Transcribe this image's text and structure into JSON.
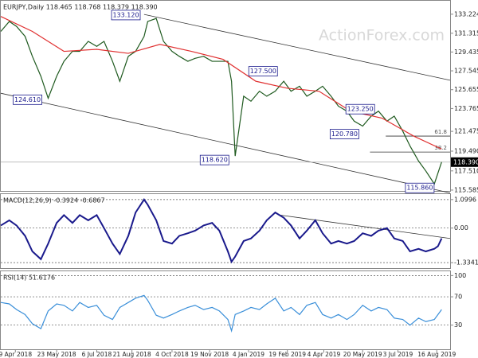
{
  "watermark": "ActionForex.com",
  "chart_data": [
    {
      "type": "line",
      "title": "EURJPY,Daily  118.465 118.768 118.379 118.390",
      "xlim": [
        0,
        370
      ],
      "ylim": [
        115.5,
        134.57
      ],
      "yticks": [
        {
          "value": 133.224,
          "label": "133.224"
        },
        {
          "value": 131.315,
          "label": "131.315"
        },
        {
          "value": 129.435,
          "label": "129.435"
        },
        {
          "value": 127.545,
          "label": "127.545"
        },
        {
          "value": 125.655,
          "label": "125.655"
        },
        {
          "value": 123.765,
          "label": "123.765"
        },
        {
          "value": 121.475,
          "label": "121.475"
        },
        {
          "value": 119.49,
          "label": "119.490"
        },
        {
          "value": 117.51,
          "label": "117.510"
        },
        {
          "value": 115.585,
          "label": "115.585"
        }
      ],
      "grid": "none",
      "x": [
        0,
        7,
        13,
        20,
        26,
        33,
        39,
        46,
        52,
        59,
        65,
        72,
        79,
        85,
        92,
        98,
        105,
        111,
        118,
        121,
        128,
        134,
        141,
        147,
        154,
        160,
        167,
        174,
        180,
        187,
        190,
        193,
        200,
        206,
        213,
        219,
        226,
        233,
        239,
        246,
        252,
        259,
        265,
        272,
        278,
        285,
        291,
        298,
        305,
        311,
        318,
        324,
        331,
        337,
        344,
        350,
        357,
        360,
        363
      ],
      "series": [
        {
          "color": "#1f5a1f",
          "values": [
            131.5,
            132.5,
            132,
            131,
            129,
            127,
            124.8,
            127,
            128.5,
            129.5,
            129.5,
            130.5,
            130,
            130.5,
            128.5,
            126.5,
            129,
            129.5,
            131,
            132.5,
            132.8,
            130.5,
            129.5,
            129,
            128.5,
            128.8,
            129,
            128.5,
            128.5,
            128.5,
            126.5,
            119,
            125,
            124.5,
            125.5,
            125,
            125.5,
            126.5,
            125.5,
            126,
            125,
            125.5,
            126,
            125,
            124,
            123.5,
            122.5,
            122,
            123,
            123.5,
            122.5,
            123,
            121.5,
            120,
            118.5,
            117.5,
            116.2,
            117.3,
            118.4
          ]
        },
        {
          "color": "#e03030",
          "x": [
            0,
            26,
            52,
            79,
            105,
            131,
            157,
            183,
            210,
            236,
            262,
            288,
            314,
            340,
            363
          ],
          "values": [
            133,
            131.5,
            129.5,
            129.7,
            129.3,
            130.2,
            129.5,
            128.7,
            126.5,
            125.8,
            125.5,
            123.5,
            122.8,
            121,
            119.7
          ]
        }
      ],
      "channel": [
        [
          [
            118,
            133.2
          ],
          [
            370,
            126.6
          ]
        ],
        [
          [
            0,
            125.3
          ],
          [
            370,
            115.3
          ]
        ]
      ],
      "fib_levels": [
        {
          "label": "61.8",
          "value": 121.0,
          "from": 317
        },
        {
          "label": "38.2",
          "value": 119.4,
          "from": 304
        }
      ],
      "last_price": {
        "value": 118.39,
        "label": "118.390"
      },
      "annotations": [
        {
          "text": "133.120",
          "x": 103,
          "y": 133.14
        },
        {
          "text": "124.610",
          "x": 22,
          "y": 124.65
        },
        {
          "text": "127.500",
          "x": 216,
          "y": 127.5
        },
        {
          "text": "118.620",
          "x": 176,
          "y": 118.6
        },
        {
          "text": "123.250",
          "x": 296,
          "y": 123.7
        },
        {
          "text": "120.780",
          "x": 283,
          "y": 121.2
        },
        {
          "text": "115.860",
          "x": 345,
          "y": 115.8
        }
      ]
    },
    {
      "type": "line",
      "title": "MACD(12,26,9) -0.3924 -0.6867",
      "xlim": [
        0,
        370
      ],
      "ylim": [
        -1.544,
        1.31
      ],
      "yticks": [
        {
          "value": 1.0996,
          "label": "1.0996"
        },
        {
          "value": 0,
          "label": "0.00"
        },
        {
          "value": -1.3341,
          "label": "-1.3341"
        }
      ],
      "grid": "dashed",
      "x": [
        0,
        7,
        13,
        20,
        26,
        33,
        39,
        46,
        52,
        59,
        65,
        72,
        79,
        85,
        92,
        98,
        105,
        111,
        118,
        121,
        128,
        134,
        141,
        147,
        154,
        160,
        167,
        174,
        180,
        187,
        190,
        193,
        200,
        206,
        213,
        219,
        226,
        233,
        239,
        246,
        252,
        259,
        265,
        272,
        278,
        285,
        291,
        298,
        305,
        311,
        318,
        324,
        331,
        337,
        344,
        350,
        357,
        360,
        363
      ],
      "series": [
        {
          "color": "#1a1a8c",
          "values": [
            0.1,
            0.3,
            0.1,
            -0.3,
            -0.9,
            -1.2,
            -0.6,
            0.2,
            0.5,
            0.2,
            0.5,
            0.3,
            0.5,
            0.0,
            -0.6,
            -1.0,
            -0.3,
            0.6,
            1.1,
            0.9,
            0.3,
            -0.5,
            -0.6,
            -0.3,
            -0.2,
            -0.1,
            0.1,
            0.2,
            -0.1,
            -0.9,
            -1.3,
            -1.1,
            -0.5,
            -0.4,
            -0.1,
            0.3,
            0.6,
            0.4,
            0.1,
            -0.4,
            -0.1,
            0.3,
            -0.2,
            -0.6,
            -0.5,
            -0.6,
            -0.5,
            -0.2,
            -0.3,
            -0.1,
            0.0,
            -0.4,
            -0.5,
            -0.9,
            -0.8,
            -0.9,
            -0.8,
            -0.7,
            -0.4
          ]
        }
      ],
      "channel": [
        [
          [
            230,
            0.5
          ],
          [
            370,
            -0.4
          ]
        ]
      ]
    },
    {
      "type": "line",
      "title": "RSI(14) 51.6176",
      "xlim": [
        0,
        370
      ],
      "ylim": [
        -4,
        106
      ],
      "yticks": [
        100,
        70,
        30
      ],
      "grid": "dashed",
      "xticks": [
        {
          "value": 12,
          "label": "9 Apr 2018"
        },
        {
          "value": 46,
          "label": "23 May 2018"
        },
        {
          "value": 79,
          "label": "6 Jul 2018"
        },
        {
          "value": 108,
          "label": "21 Aug 2018"
        },
        {
          "value": 141,
          "label": "4 Oct 2018"
        },
        {
          "value": 172,
          "label": "19 Nov 2018"
        },
        {
          "value": 204,
          "label": "4 Jan 2019"
        },
        {
          "value": 236,
          "label": "19 Feb 2019"
        },
        {
          "value": 266,
          "label": "4 Apr 2019"
        },
        {
          "value": 298,
          "label": "20 May 2019"
        },
        {
          "value": 327,
          "label": "3 Jul 2019"
        },
        {
          "value": 359,
          "label": "16 Aug 2019"
        }
      ],
      "x": [
        0,
        7,
        13,
        20,
        26,
        33,
        39,
        46,
        52,
        59,
        65,
        72,
        79,
        85,
        92,
        98,
        105,
        111,
        118,
        121,
        128,
        134,
        141,
        147,
        154,
        160,
        167,
        174,
        180,
        187,
        190,
        193,
        200,
        206,
        213,
        219,
        226,
        233,
        239,
        246,
        252,
        259,
        265,
        272,
        278,
        285,
        291,
        298,
        305,
        311,
        318,
        324,
        331,
        337,
        344,
        350,
        357,
        360,
        363
      ],
      "series": [
        {
          "color": "#3a8fd9",
          "values": [
            62,
            60,
            52,
            45,
            32,
            25,
            50,
            60,
            58,
            50,
            62,
            55,
            58,
            44,
            38,
            55,
            62,
            68,
            72,
            65,
            44,
            40,
            45,
            50,
            55,
            58,
            52,
            55,
            50,
            38,
            22,
            45,
            50,
            55,
            52,
            60,
            68,
            50,
            55,
            45,
            58,
            62,
            45,
            40,
            45,
            38,
            45,
            58,
            50,
            55,
            52,
            40,
            38,
            30,
            40,
            35,
            38,
            45,
            52
          ]
        }
      ]
    }
  ]
}
